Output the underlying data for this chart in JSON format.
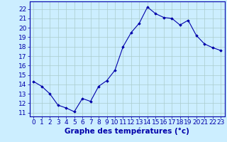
{
  "x": [
    0,
    1,
    2,
    3,
    4,
    5,
    6,
    7,
    8,
    9,
    10,
    11,
    12,
    13,
    14,
    15,
    16,
    17,
    18,
    19,
    20,
    21,
    22,
    23
  ],
  "y": [
    14.3,
    13.8,
    13.0,
    11.8,
    11.5,
    11.1,
    12.5,
    12.2,
    13.8,
    14.4,
    15.5,
    18.0,
    19.5,
    20.5,
    22.2,
    21.5,
    21.1,
    21.0,
    20.3,
    20.8,
    19.2,
    18.3,
    17.9,
    17.6
  ],
  "xlabel": "Graphe des températures (°c)",
  "ylim": [
    10.6,
    22.8
  ],
  "xlim": [
    -0.5,
    23.5
  ],
  "yticks": [
    11,
    12,
    13,
    14,
    15,
    16,
    17,
    18,
    19,
    20,
    21,
    22
  ],
  "xticks": [
    0,
    1,
    2,
    3,
    4,
    5,
    6,
    7,
    8,
    9,
    10,
    11,
    12,
    13,
    14,
    15,
    16,
    17,
    18,
    19,
    20,
    21,
    22,
    23
  ],
  "line_color": "#0000aa",
  "marker": "D",
  "marker_size": 1.8,
  "bg_color": "#cceeff",
  "grid_color": "#aacccc",
  "axis_color": "#0000aa",
  "label_color": "#0000aa",
  "xlabel_fontsize": 7.5,
  "tick_fontsize": 6.5
}
